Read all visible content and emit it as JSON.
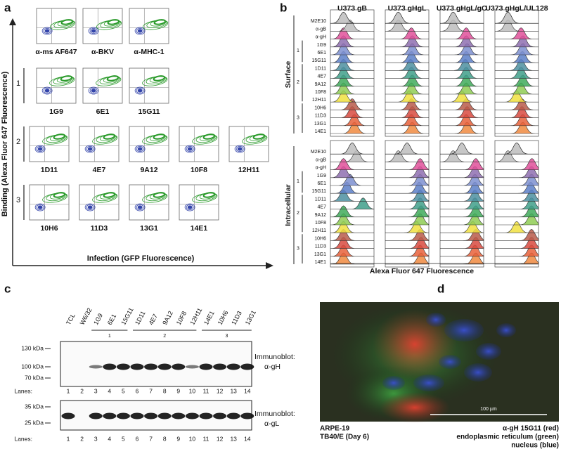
{
  "panel_a": {
    "label": "a",
    "y_axis_label": "Binding (Alexa Fluor 647 Fluorescence)",
    "x_axis_label": "Infection (GFP Fluorescence)",
    "controls": [
      "α-ms AF647",
      "α-BKV",
      "α-MHC-1"
    ],
    "groups": [
      {
        "number": "1",
        "antibodies": [
          "1G9",
          "6E1",
          "15G11"
        ]
      },
      {
        "number": "2",
        "antibodies": [
          "1D11",
          "4E7",
          "9A12",
          "10F8",
          "12H11"
        ]
      },
      {
        "number": "3",
        "antibodies": [
          "10H6",
          "11D3",
          "13G1",
          "14E1"
        ]
      }
    ]
  },
  "panel_b": {
    "label": "b",
    "columns": [
      "U373 gB",
      "U373 gHgL",
      "U373 gHgL/gO",
      "U373 gHgL/UL128"
    ],
    "sections": [
      "Surface",
      "Intracellular"
    ],
    "controls": [
      "M2E10",
      "α-gB",
      "α-gH"
    ],
    "groups": [
      {
        "number": "1",
        "antibodies": [
          "1G9",
          "6E1",
          "15G11"
        ]
      },
      {
        "number": "2",
        "antibodies": [
          "1D11",
          "4E7",
          "9A12",
          "10F8",
          "12H11"
        ]
      },
      {
        "number": "3",
        "antibodies": [
          "10H6",
          "11D3",
          "13G1",
          "14E1"
        ]
      }
    ],
    "x_axis_label": "Alexa Fluor 647 Fluorescence"
  },
  "panel_c": {
    "label": "c",
    "lanes": [
      "TCL",
      "W6/32",
      "1G9",
      "6E1",
      "15G11",
      "1D11",
      "4E7",
      "9A12",
      "10F8",
      "12H11",
      "14E1",
      "10H6",
      "11D3",
      "13G1"
    ],
    "groups": [
      "1",
      "2",
      "3"
    ],
    "lanes_label": "Lanes:",
    "lane_numbers": [
      1,
      2,
      3,
      4,
      5,
      6,
      7,
      8,
      9,
      10,
      11,
      12,
      13,
      14
    ],
    "blots": [
      {
        "markers": [
          "130 kDa",
          "100 kDa",
          "70 kDa"
        ],
        "caption": [
          "Immunoblot:",
          "α-gH"
        ]
      },
      {
        "markers": [
          "35 kDa",
          "25 kDa"
        ],
        "caption": [
          "Immunoblot:",
          "α-gL"
        ]
      }
    ]
  },
  "panel_d": {
    "label": "d",
    "scale_bar": "100 µm",
    "caption_left": [
      "ARPE-19",
      "TB40/E (Day 6)"
    ],
    "caption_right": [
      "α-gH 15G11 (red)",
      "endoplasmic reticulum (green)",
      "nucleus (blue)"
    ]
  }
}
